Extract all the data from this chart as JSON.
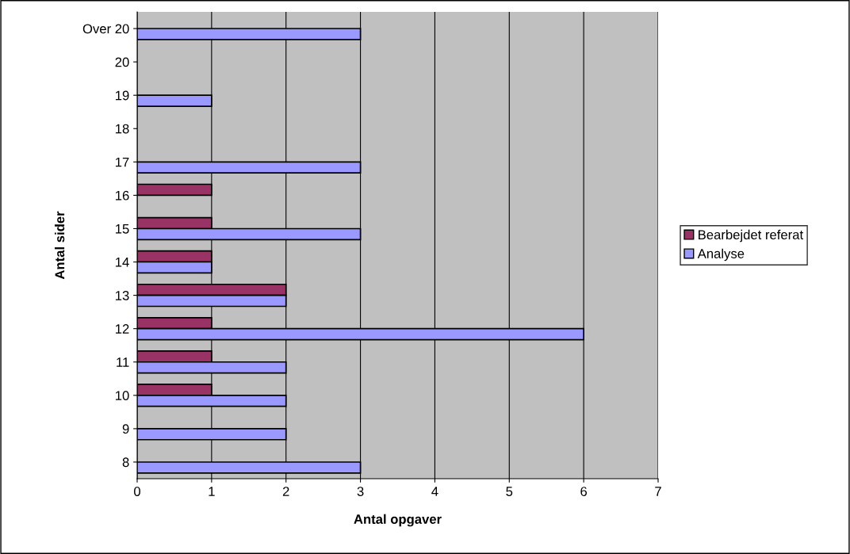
{
  "chart_data": {
    "type": "bar",
    "orientation": "horizontal",
    "xlabel": "Antal opgaver",
    "ylabel": "Antal sider",
    "categories": [
      "Over 20",
      "20",
      "19",
      "18",
      "17",
      "16",
      "15",
      "14",
      "13",
      "12",
      "11",
      "10",
      "9",
      "8"
    ],
    "series": [
      {
        "name": "Bearbejdet referat",
        "color": "#993366",
        "values": [
          null,
          null,
          null,
          null,
          null,
          1,
          1,
          1,
          2,
          1,
          1,
          1,
          null,
          null
        ]
      },
      {
        "name": "Analyse",
        "color": "#9999ff",
        "values": [
          3,
          null,
          1,
          null,
          3,
          null,
          3,
          1,
          2,
          6,
          2,
          2,
          2,
          3
        ]
      }
    ],
    "xlim": [
      0,
      7
    ],
    "xticks": [
      0,
      1,
      2,
      3,
      4,
      5,
      6,
      7
    ],
    "grid": "x",
    "legend": "right"
  }
}
